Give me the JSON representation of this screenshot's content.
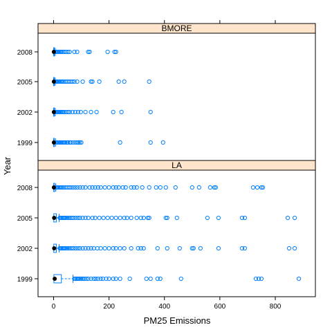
{
  "colors": {
    "strip_bg": "#ffe5cc",
    "point": "#0080ff",
    "frame": "#000000",
    "median_dot": "#000000"
  },
  "chart_data": {
    "type": "box-and-whisker",
    "xlabel": "PM25 Emissions",
    "ylabel": "Year",
    "xlim": [
      -50,
      920
    ],
    "xticks": [
      0,
      200,
      400,
      600,
      800
    ],
    "grid": false,
    "layout": "2 stacked panels",
    "panels": [
      {
        "name": "BMORE",
        "categories": [
          "1999",
          "2002",
          "2005",
          "2008"
        ],
        "boxes": [
          {
            "year": "1999",
            "q1": 0.1,
            "median": 1,
            "q3": 3,
            "whisker_hi": 7,
            "outliers": [
              10,
              12,
              14,
              17,
              20,
              24,
              27,
              30,
              34,
              38,
              42,
              48,
              52,
              58,
              62,
              70,
              78,
              85,
              90,
              95,
              100,
              240,
              350,
              395
            ]
          },
          {
            "year": "2002",
            "q1": 0.1,
            "median": 1,
            "q3": 3,
            "whisker_hi": 6,
            "outliers": [
              9,
              11,
              13,
              16,
              19,
              22,
              26,
              30,
              34,
              38,
              45,
              52,
              58,
              68,
              78,
              88,
              98,
              115,
              135,
              155,
              215,
              245,
              350
            ]
          },
          {
            "year": "2005",
            "q1": 0.1,
            "median": 1,
            "q3": 2.5,
            "whisker_hi": 6,
            "outliers": [
              8,
              10,
              12,
              15,
              18,
              21,
              25,
              29,
              33,
              38,
              44,
              50,
              56,
              62,
              68,
              75,
              85,
              105,
              135,
              140,
              165,
              235,
              255,
              345
            ]
          },
          {
            "year": "2008",
            "q1": 0.1,
            "median": 1,
            "q3": 2.5,
            "whisker_hi": 6,
            "outliers": [
              8,
              10,
              12,
              14,
              17,
              20,
              24,
              28,
              32,
              38,
              45,
              52,
              58,
              75,
              85,
              125,
              130,
              195,
              220,
              225
            ]
          }
        ]
      },
      {
        "name": "LA",
        "categories": [
          "1999",
          "2002",
          "2005",
          "2008"
        ],
        "boxes": [
          {
            "year": "1999",
            "q1": 1,
            "median": 4,
            "q3": 28,
            "whisker_hi": 70,
            "outliers": [
              75,
              78,
              82,
              86,
              90,
              95,
              100,
              105,
              110,
              118,
              125,
              135,
              145,
              152,
              160,
              170,
              178,
              190,
              200,
              215,
              225,
              240,
              275,
              335,
              350,
              375,
              385,
              460,
              730,
              740,
              750,
              885
            ]
          },
          {
            "year": "2002",
            "q1": 0.5,
            "median": 2,
            "q3": 10,
            "whisker_hi": 20,
            "outliers": [
              22,
              25,
              28,
              32,
              36,
              40,
              45,
              50,
              55,
              60,
              66,
              72,
              80,
              88,
              95,
              105,
              115,
              125,
              135,
              145,
              158,
              170,
              185,
              200,
              215,
              225,
              240,
              255,
              280,
              305,
              315,
              325,
              375,
              410,
              455,
              500,
              505,
              530,
              595,
              680,
              690,
              850,
              870
            ]
          },
          {
            "year": "2005",
            "q1": 0.5,
            "median": 2,
            "q3": 10,
            "whisker_hi": 20,
            "outliers": [
              22,
              25,
              28,
              32,
              36,
              40,
              45,
              50,
              55,
              60,
              66,
              72,
              80,
              88,
              95,
              105,
              115,
              125,
              140,
              150,
              165,
              180,
              195,
              210,
              225,
              240,
              255,
              265,
              280,
              300,
              315,
              325,
              340,
              345,
              405,
              410,
              445,
              555,
              595,
              680,
              690,
              845,
              870
            ]
          },
          {
            "year": "2008",
            "q1": 0.2,
            "median": 1,
            "q3": 4,
            "whisker_hi": 8,
            "outliers": [
              10,
              13,
              16,
              20,
              24,
              28,
              33,
              38,
              44,
              50,
              56,
              62,
              70,
              78,
              86,
              95,
              105,
              115,
              130,
              140,
              150,
              160,
              170,
              185,
              200,
              215,
              225,
              235,
              250,
              260,
              280,
              290,
              300,
              320,
              345,
              370,
              385,
              405,
              440,
              500,
              525,
              565,
              580,
              585,
              720,
              735,
              750,
              755
            ]
          }
        ]
      }
    ]
  }
}
